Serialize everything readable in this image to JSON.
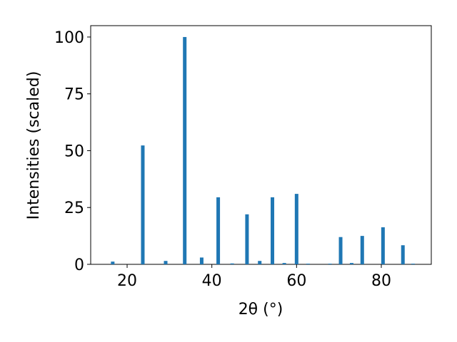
{
  "chart_data": {
    "type": "bar",
    "x": [
      16.6,
      23.7,
      29.1,
      33.6,
      37.6,
      41.5,
      44.8,
      48.3,
      51.3,
      54.3,
      57.1,
      60.0,
      62.7,
      67.9,
      70.4,
      73.0,
      75.5,
      80.4,
      85.1,
      87.5
    ],
    "values": [
      1.2,
      52.3,
      1.5,
      100,
      3.0,
      29.5,
      0.4,
      22.0,
      1.5,
      29.5,
      0.6,
      31.0,
      0.3,
      0.3,
      12.0,
      0.6,
      12.5,
      16.3,
      8.4,
      0.3
    ],
    "color": "#1f77b4",
    "xlabel": "2θ (°)",
    "ylabel": "Intensities (scaled)",
    "xlim": [
      11.4,
      91.8
    ],
    "ylim": [
      0,
      105
    ],
    "xticks": [
      20,
      40,
      60,
      80
    ],
    "yticks": [
      0,
      25,
      50,
      75,
      100
    ],
    "grid": false
  }
}
